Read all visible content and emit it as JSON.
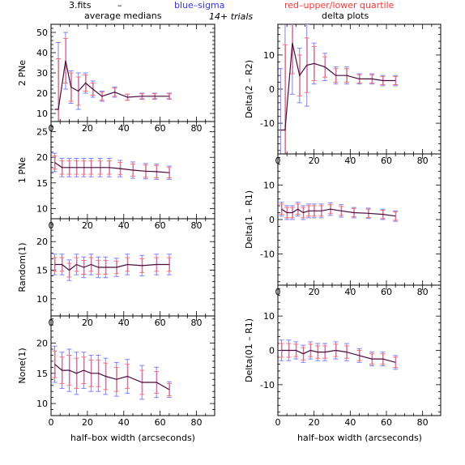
{
  "header": {
    "file_label": "3.fits",
    "dash": "–",
    "blue_label": "blue–sigma",
    "red_label": "red–upper/lower quartile",
    "left_title": "average medians",
    "middle_title": "14+ trials",
    "right_title": "delta plots",
    "blue_color": "#3333ff",
    "red_color": "#ff3333"
  },
  "colors": {
    "line": "#4a0a3a",
    "sigma": "#8080ff",
    "quartile": "#ff7070",
    "axis": "#000000"
  },
  "chart_data": [
    {
      "type": "line",
      "panel": "left-1",
      "ylabel": "2 PNe",
      "xlim": [
        0,
        90
      ],
      "ylim": [
        6,
        54
      ],
      "xticks": [
        0,
        20,
        40,
        60,
        80
      ],
      "yticks": [
        10,
        20,
        30,
        40,
        50
      ],
      "x": [
        2,
        4,
        8,
        11,
        15,
        19,
        23,
        28,
        35,
        42,
        50,
        57,
        65
      ],
      "y": [
        12,
        12,
        36,
        23,
        21,
        25,
        22,
        18.5,
        20.5,
        18,
        18.5,
        18.5,
        18.5
      ],
      "sigma": [
        0,
        33,
        14,
        8,
        9,
        5,
        4,
        2.5,
        2.5,
        1.5,
        1.5,
        1.5,
        1.5
      ],
      "quartile": [
        0,
        25,
        11,
        7,
        7,
        4,
        3,
        2,
        2,
        1.5,
        1.2,
        1.2,
        1.2
      ]
    },
    {
      "type": "line",
      "panel": "right-1",
      "ylabel": "Delta(2 – R2)",
      "xlim": [
        0,
        90
      ],
      "ylim": [
        -19,
        19
      ],
      "xticks": [
        0,
        20,
        40,
        60,
        80
      ],
      "yticks": [
        -10,
        0,
        10
      ],
      "x": [
        1.5,
        4,
        8,
        12,
        16,
        20,
        26,
        32,
        38,
        45,
        52,
        58,
        65
      ],
      "y": [
        -12,
        -12,
        13.5,
        4,
        7,
        7.5,
        6.5,
        4,
        4,
        3,
        3,
        2.5,
        2.5
      ],
      "sigma": [
        18,
        40,
        15,
        8,
        12,
        6,
        4,
        2.5,
        2.5,
        1.5,
        1.5,
        1.5,
        1.5
      ],
      "quartile": [
        0,
        25,
        9,
        6,
        8,
        5,
        3,
        2,
        2,
        1.2,
        1.2,
        1.2,
        1.2
      ]
    },
    {
      "type": "line",
      "panel": "left-2",
      "ylabel": "1 PNe",
      "xlim": [
        0,
        90
      ],
      "ylim": [
        8,
        27
      ],
      "xticks": [
        0,
        20,
        40,
        60,
        80
      ],
      "yticks": [
        10,
        15,
        20,
        25
      ],
      "x": [
        2,
        6,
        10,
        14,
        18,
        22,
        27,
        32,
        38,
        45,
        52,
        58,
        65
      ],
      "y": [
        19,
        18,
        18,
        18,
        18,
        18,
        18,
        18,
        17.8,
        17.5,
        17.3,
        17.2,
        17
      ],
      "sigma": [
        1.8,
        1.8,
        1.8,
        1.8,
        1.8,
        1.8,
        1.8,
        1.8,
        1.6,
        1.6,
        1.5,
        1.5,
        1.3
      ],
      "quartile": [
        1.3,
        1.3,
        1.3,
        1.3,
        1.3,
        1.3,
        1.3,
        1.3,
        1.2,
        1.2,
        1.2,
        1.2,
        1
      ]
    },
    {
      "type": "line",
      "panel": "right-2",
      "ylabel": "Delta(1 – R1)",
      "xlim": [
        0,
        90
      ],
      "ylim": [
        -19,
        19
      ],
      "xticks": [
        0,
        20,
        40,
        60,
        80
      ],
      "yticks": [
        -10,
        0,
        10
      ],
      "x": [
        2,
        5,
        8,
        11,
        14,
        17,
        20,
        24,
        29,
        35,
        42,
        50,
        58,
        65
      ],
      "y": [
        3,
        2,
        2,
        3,
        2,
        2.5,
        2.5,
        2.5,
        3,
        2.5,
        2,
        1.8,
        1.5,
        1
      ],
      "sigma": [
        2,
        2,
        2,
        2,
        2,
        2,
        2,
        2,
        1.8,
        1.8,
        1.5,
        1.5,
        1.5,
        1.5
      ],
      "quartile": [
        1.5,
        1.5,
        1.5,
        1.5,
        1.5,
        1.5,
        1.5,
        1.5,
        1.3,
        1.3,
        1.2,
        1.2,
        1.2,
        1.2
      ]
    },
    {
      "type": "line",
      "panel": "left-3",
      "ylabel": "Random(1)",
      "xlim": [
        0,
        90
      ],
      "ylim": [
        7,
        24
      ],
      "xticks": [
        0,
        20,
        40,
        60,
        80
      ],
      "yticks": [
        10,
        15,
        20
      ],
      "x": [
        2,
        6,
        10,
        14,
        18,
        22,
        26,
        30,
        36,
        42,
        50,
        58,
        65
      ],
      "y": [
        16,
        16,
        15,
        16,
        15.5,
        16,
        15.5,
        15.5,
        15.5,
        16,
        15.8,
        16,
        16
      ],
      "sigma": [
        1.8,
        1.8,
        1.8,
        1.8,
        1.8,
        1.8,
        1.8,
        1.8,
        1.6,
        1.8,
        1.8,
        1.8,
        1.8
      ],
      "quartile": [
        1.2,
        1.2,
        1.2,
        1.2,
        1.2,
        1.2,
        1.2,
        1.2,
        1.1,
        1.2,
        1.2,
        1.2,
        1.2
      ]
    },
    {
      "type": "line",
      "panel": "right-3",
      "ylabel": "Delta(01 – R1)",
      "xlim": [
        0,
        90
      ],
      "ylim": [
        -19,
        19
      ],
      "xticks": [
        0,
        20,
        40,
        60,
        80
      ],
      "yticks": [
        -10,
        0,
        10
      ],
      "x": [
        2,
        6,
        10,
        14,
        18,
        22,
        26,
        32,
        38,
        45,
        52,
        58,
        65
      ],
      "y": [
        0,
        0,
        0,
        -1,
        0,
        -0.5,
        -0.5,
        0,
        -0.5,
        -1.5,
        -2.5,
        -2.5,
        -3.5
      ],
      "sigma": [
        3,
        3,
        2.5,
        2.5,
        2.5,
        2.5,
        2.5,
        2.5,
        2.5,
        2,
        2,
        2,
        2
      ],
      "quartile": [
        2,
        2,
        1.8,
        1.8,
        1.8,
        1.8,
        1.8,
        1.8,
        1.8,
        1.5,
        1.5,
        1.5,
        1.5
      ]
    },
    {
      "type": "line",
      "panel": "left-4",
      "ylabel": "None(1)",
      "xlim": [
        0,
        90
      ],
      "ylim": [
        8,
        24.5
      ],
      "xticks": [
        0,
        20,
        40,
        60,
        80
      ],
      "yticks": [
        10,
        15,
        20
      ],
      "x": [
        2,
        6,
        10,
        14,
        18,
        22,
        26,
        30,
        36,
        42,
        50,
        58,
        65
      ],
      "y": [
        16.5,
        15.5,
        15.5,
        15,
        15.5,
        15,
        15,
        14.5,
        14,
        14.5,
        13.5,
        13.5,
        12.3
      ],
      "sigma": [
        3,
        3,
        3.5,
        3.5,
        3,
        3,
        3,
        3,
        2.8,
        2.8,
        2.8,
        2.5,
        1.3
      ],
      "quartile": [
        2.2,
        2.2,
        2.5,
        2.5,
        2.2,
        2.2,
        2.2,
        2.2,
        2,
        2,
        2,
        1.8,
        1
      ]
    }
  ],
  "xlabel": "half–box width (arcseconds)"
}
